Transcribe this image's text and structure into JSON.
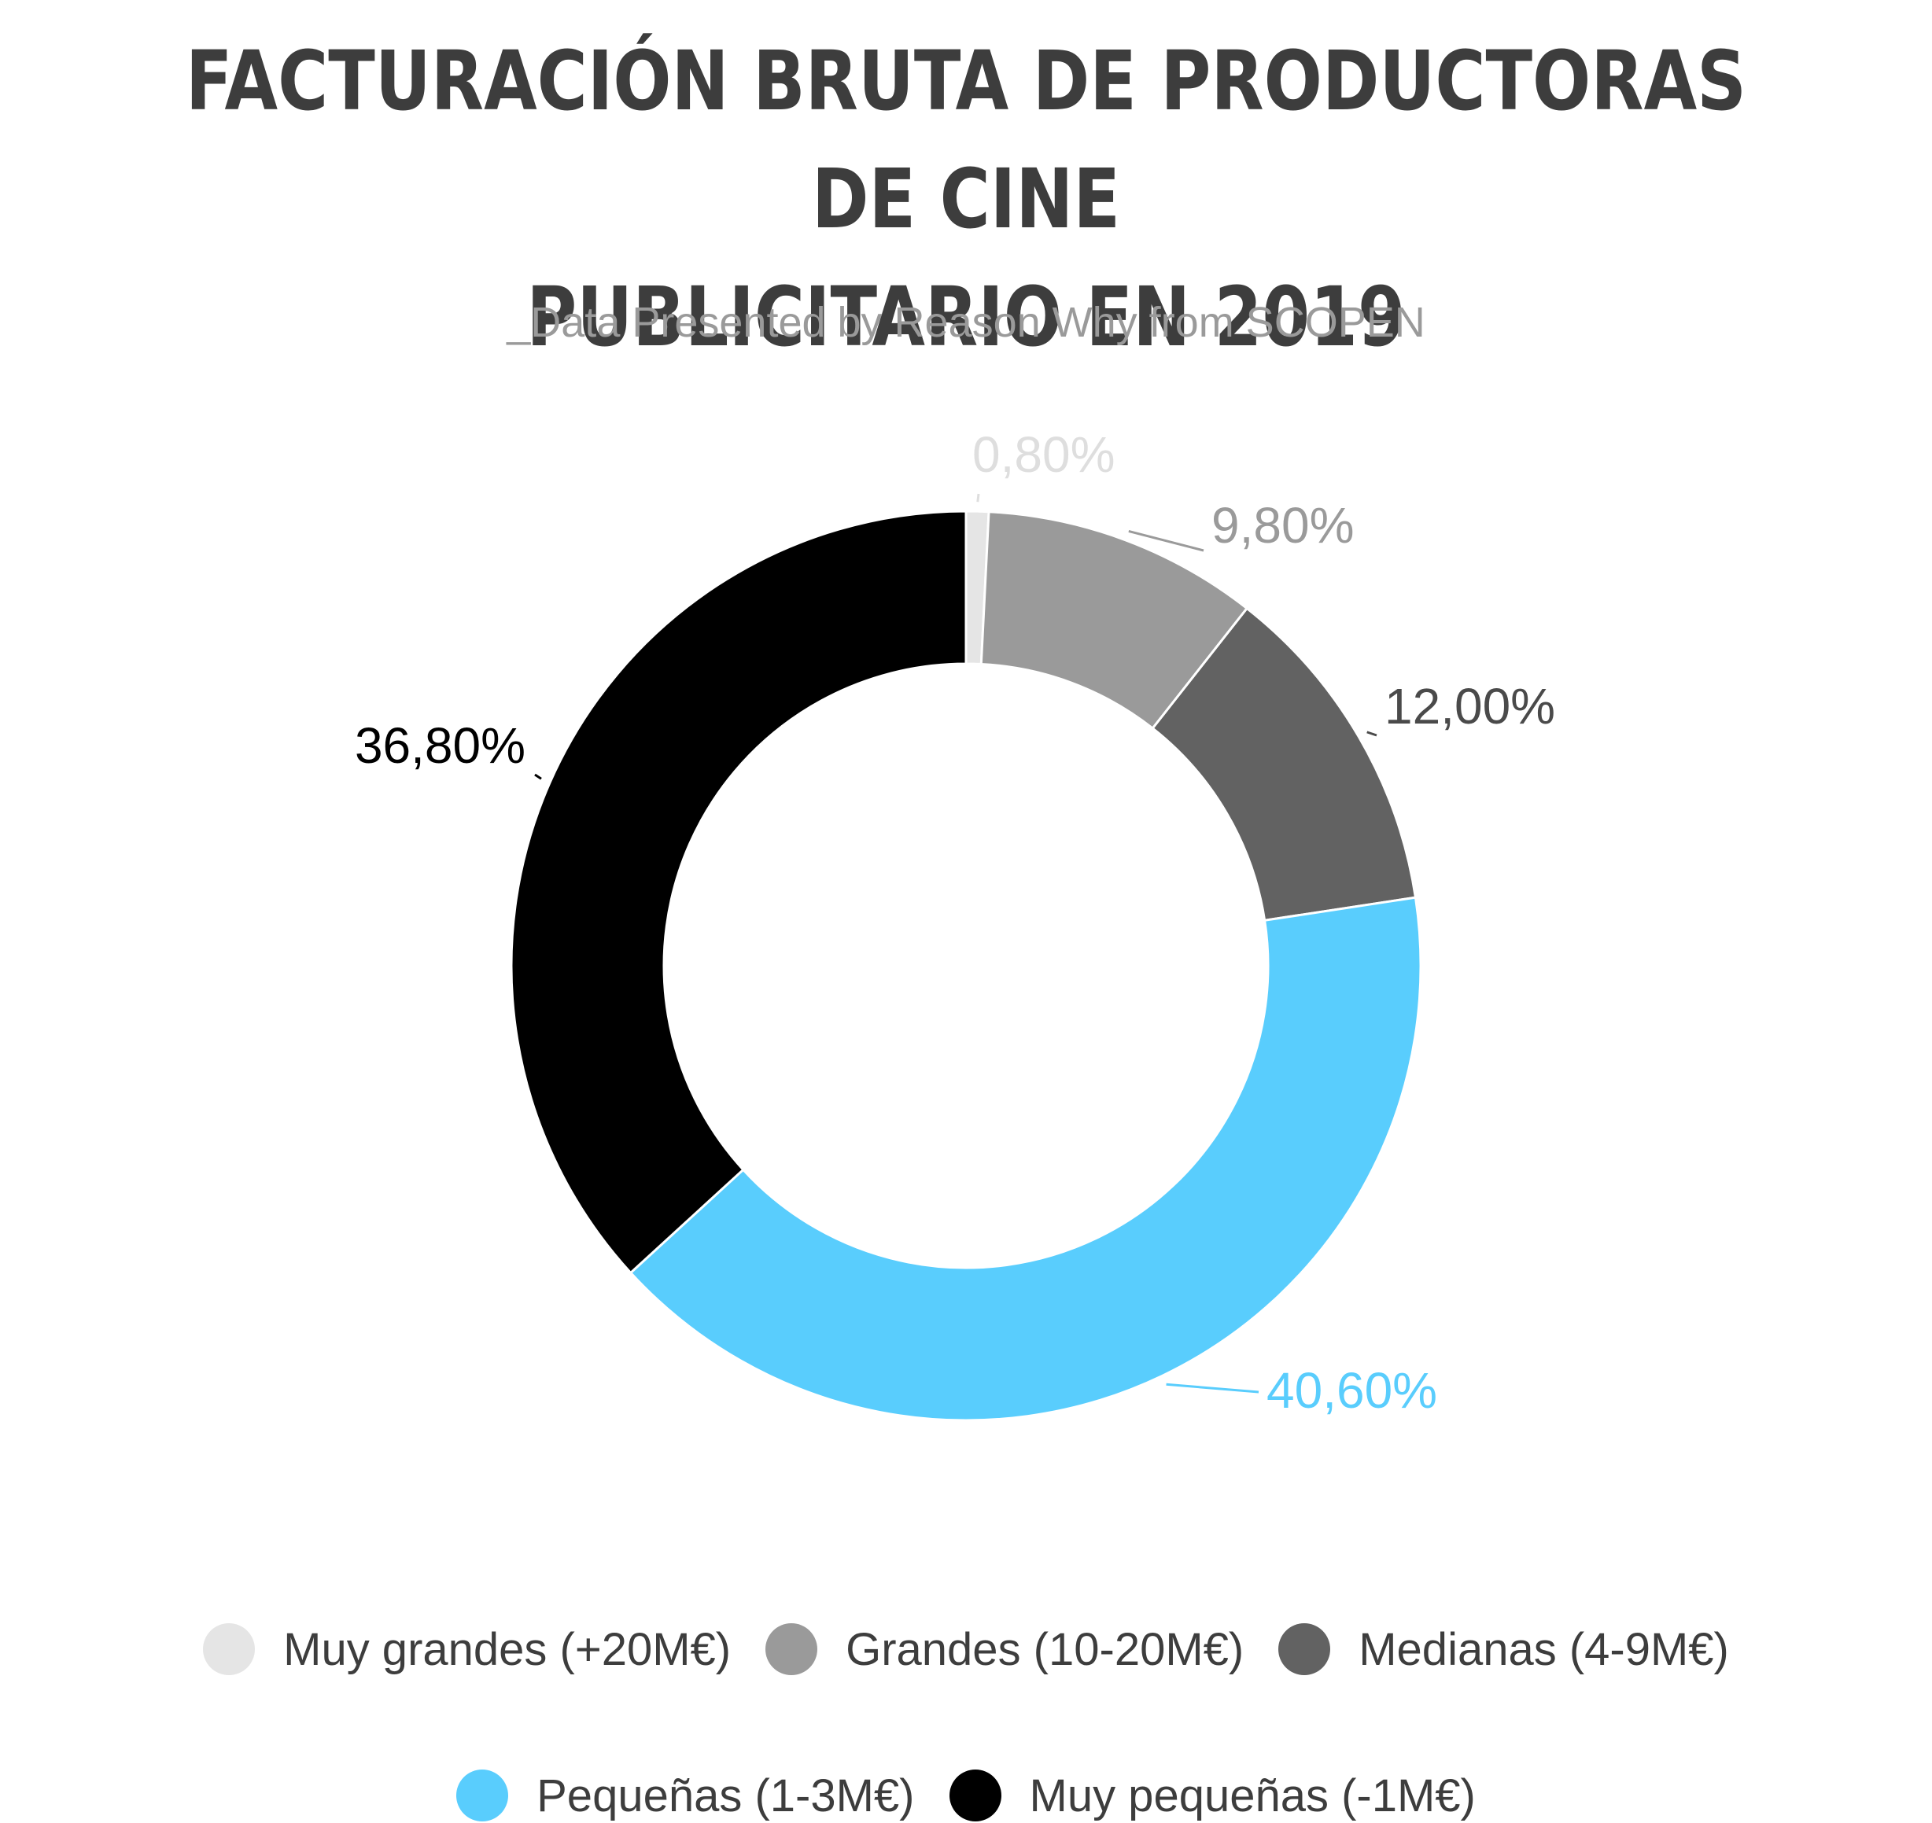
{
  "chart_data": {
    "type": "pie",
    "donut": true,
    "title": "FACTURACIÓN BRUTA DE PRODUCTORAS DE CINE PUBLICITARIO EN 2019",
    "title_lines": [
      "FACTURACIÓN BRUTA DE PRODUCTORAS DE CINE",
      "PUBLICITARIO EN 2019"
    ],
    "subtitle": "_Data Presented by Reason Why from SCOPEN",
    "legend_position": "bottom",
    "slices": [
      {
        "name": "Muy grandes (+20M€)",
        "value": 0.8,
        "label": "0,80%",
        "color": "#e5e5e5",
        "label_color": "#dedede"
      },
      {
        "name": "Grandes (10-20M€)",
        "value": 9.8,
        "label": "9,80%",
        "color": "#9a9a9a",
        "label_color": "#9a9a9a"
      },
      {
        "name": "Medianas (4-9M€)",
        "value": 12.0,
        "label": "12,00%",
        "color": "#626262",
        "label_color": "#4a4a4a"
      },
      {
        "name": "Pequeñas (1-3M€)",
        "value": 40.6,
        "label": "40,60%",
        "color": "#59cdfd",
        "label_color": "#59cdfd"
      },
      {
        "name": "Muy pequeñas (-1M€)",
        "value": 36.8,
        "label": "36,80%",
        "color": "#000000",
        "label_color": "#000000"
      }
    ]
  },
  "legend": {
    "items": [
      {
        "label": "Muy grandes (+20M€)",
        "color": "#e5e5e5"
      },
      {
        "label": "Grandes (10-20M€)",
        "color": "#9a9a9a"
      },
      {
        "label": "Medianas (4-9M€)",
        "color": "#626262"
      },
      {
        "label": "Pequeñas (1-3M€)",
        "color": "#59cdfd"
      },
      {
        "label": "Muy pequeñas (-1M€)",
        "color": "#000000"
      }
    ]
  }
}
